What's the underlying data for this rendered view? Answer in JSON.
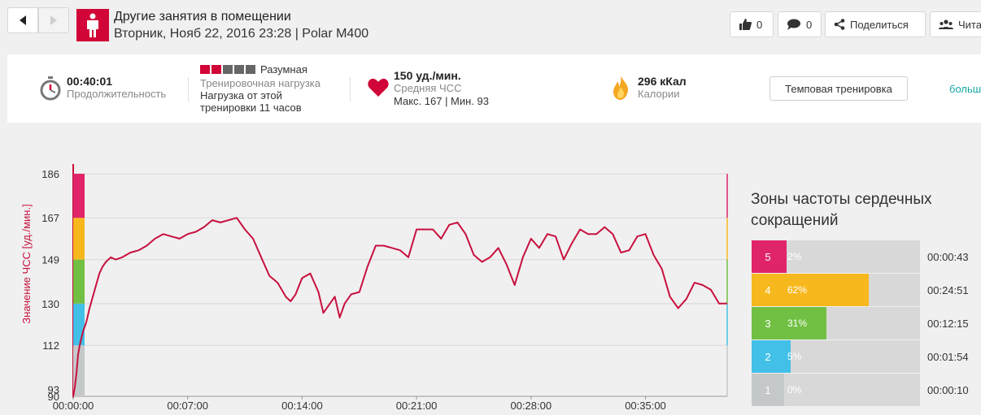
{
  "header": {
    "title": "Другие занятия в помещении",
    "subtitle": "Вторник, Нояб 22, 2016 23:28 | Polar M400",
    "likes": "0",
    "comments": "0",
    "share_label": "Поделиться",
    "followers_label": "Чита"
  },
  "summary": {
    "duration_value": "00:40:01",
    "duration_label": "Продолжительность",
    "load_level": "Разумная",
    "load_label": "Тренировочная нагрузка",
    "load_recovery_1": "Нагрузка от этой",
    "load_recovery_2": "тренировки 11 часов",
    "hr_value": "150 уд./мин.",
    "hr_label": "Средняя ЧСС",
    "hr_minmax": "Макс. 167  |  Мин. 93",
    "cal_value": "296 кКал",
    "cal_label": "Калории",
    "tempo_button": "Темповая тренировка",
    "more_link": "больш"
  },
  "colors": {
    "accent": "#d10537",
    "line": "#c8103e",
    "zone5": "#e0246a",
    "zone4": "#f7b81e",
    "zone3": "#72c043",
    "zone2": "#42c0e8",
    "zone1": "#c4c8c8"
  },
  "load_bars": {
    "filled": 2,
    "total": 5
  },
  "zones": {
    "title": "Зоны частоты сердечных сокращений",
    "rows": [
      {
        "num": "5",
        "pct_label": "2%",
        "pct": 2,
        "time": "00:00:43",
        "color": "#e0246a"
      },
      {
        "num": "4",
        "pct_label": "62%",
        "pct": 62,
        "time": "00:24:51",
        "color": "#f7b81e"
      },
      {
        "num": "3",
        "pct_label": "31%",
        "pct": 31,
        "time": "00:12:15",
        "color": "#72c043"
      },
      {
        "num": "2",
        "pct_label": "5%",
        "pct": 5,
        "time": "00:01:54",
        "color": "#42c0e8"
      },
      {
        "num": "1",
        "pct_label": "0%",
        "pct": 0,
        "time": "00:00:10",
        "color": "#c4c8c8"
      }
    ]
  },
  "chart_data": {
    "type": "line",
    "ylabel": "Значение ЧСС [уд./мин.]",
    "y_ticks": [
      186,
      167,
      149,
      130,
      112,
      93,
      90
    ],
    "x_ticks": [
      "00:00:00",
      "00:07:00",
      "00:14:00",
      "00:21:00",
      "00:28:00",
      "00:35:00"
    ],
    "xlim": [
      0,
      40.0
    ],
    "ylim": [
      90,
      186
    ],
    "zone_bounds": [
      112,
      130,
      149,
      167,
      186
    ],
    "series": [
      {
        "x": [
          0,
          0.1,
          0.2,
          0.3,
          0.4,
          0.5,
          0.6,
          0.8,
          1.0,
          1.2,
          1.4,
          1.6,
          1.8,
          2.0,
          2.3,
          2.6,
          3.0,
          3.5,
          4.0,
          4.5,
          5.0,
          5.5,
          6.0,
          6.5,
          7.0,
          7.5,
          8.0,
          8.5,
          9.0,
          9.5,
          10.0,
          10.5,
          11.0,
          11.5,
          12.0,
          12.5,
          13.0,
          13.3,
          13.6,
          14.0,
          14.5,
          15.0,
          15.3,
          15.6,
          16.0,
          16.3,
          16.6,
          17.0,
          17.5,
          18.0,
          18.5,
          19.0,
          19.5,
          20.0,
          20.5,
          21.0,
          21.5,
          22.0,
          22.5,
          23.0,
          23.5,
          24.0,
          24.5,
          25.0,
          25.5,
          26.0,
          26.5,
          27.0,
          27.5,
          28.0,
          28.5,
          29.0,
          29.5,
          30.0,
          30.5,
          31.0,
          31.5,
          32.0,
          32.5,
          33.0,
          33.5,
          34.0,
          34.5,
          35.0,
          35.5,
          36.0,
          36.5,
          37.0,
          37.5,
          38.0,
          38.5,
          39.0,
          39.5,
          40.0
        ],
        "values": [
          90,
          94,
          100,
          108,
          112,
          115,
          118,
          122,
          128,
          133,
          138,
          143,
          146,
          148,
          150,
          149,
          150,
          152,
          153,
          155,
          158,
          160,
          159,
          158,
          160,
          161,
          163,
          166,
          165,
          166,
          167,
          162,
          158,
          150,
          142,
          139,
          133,
          131,
          134,
          141,
          143,
          135,
          126,
          129,
          133,
          124,
          130,
          134,
          135,
          146,
          155,
          155,
          154,
          153,
          150,
          162,
          162,
          162,
          158,
          164,
          165,
          160,
          151,
          148,
          150,
          154,
          147,
          138,
          150,
          158,
          154,
          160,
          159,
          149,
          156,
          162,
          160,
          160,
          163,
          160,
          152,
          153,
          159,
          160,
          151,
          145,
          133,
          128,
          132,
          139,
          138,
          136,
          130,
          130
        ]
      }
    ]
  }
}
